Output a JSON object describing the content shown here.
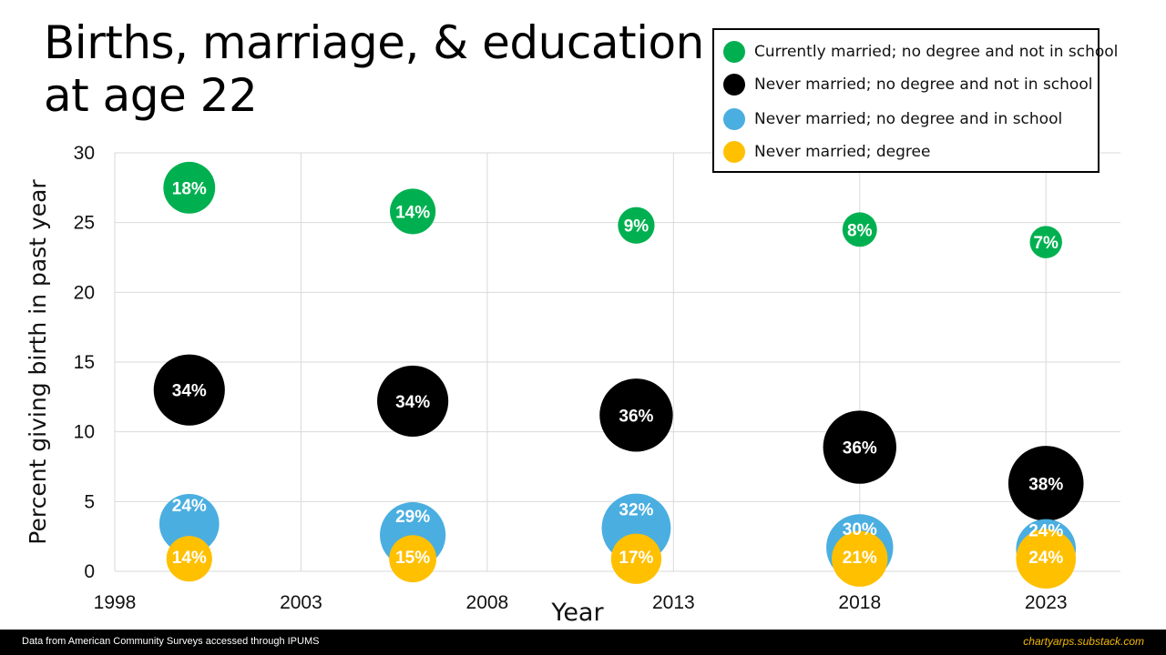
{
  "footer": {
    "source": "Data from American Community Surveys accessed through IPUMS",
    "site": "chartyarps.substack.com"
  },
  "chart_data": {
    "type": "bubble",
    "title_lines": [
      "Births, marriage, & education",
      "at age 22"
    ],
    "xlabel": "Year",
    "ylabel": "Percent giving birth in past year",
    "xlim": [
      1998,
      2025
    ],
    "ylim": [
      0,
      30
    ],
    "xticks": [
      "1998",
      "2003",
      "2008",
      "2013",
      "2018",
      "2023"
    ],
    "yticks": [
      "0",
      "5",
      "10",
      "15",
      "20",
      "25",
      "30"
    ],
    "grid": true,
    "legend_position": "top-right",
    "series": [
      {
        "name": "Currently married; no degree and not in school",
        "color": "#00b050",
        "label_color": "#ffffff",
        "x": [
          2000,
          2006,
          2012,
          2018,
          2023
        ],
        "y": [
          27.5,
          25.8,
          24.8,
          24.5,
          23.6
        ],
        "labels": [
          "18%",
          "14%",
          "9%",
          "8%",
          "7%"
        ],
        "size": [
          18,
          14,
          9,
          8,
          7
        ]
      },
      {
        "name": "Never married; no degree and not in school",
        "color": "#000000",
        "label_color": "#ffffff",
        "x": [
          2000,
          2006,
          2012,
          2018,
          2023
        ],
        "y": [
          13.0,
          12.2,
          11.2,
          8.9,
          6.3
        ],
        "labels": [
          "34%",
          "34%",
          "36%",
          "36%",
          "38%"
        ],
        "size": [
          34,
          34,
          36,
          36,
          38
        ]
      },
      {
        "name": "Never married; no degree and in school",
        "color": "#4aaee0",
        "label_color": "#ffffff",
        "x": [
          2000,
          2006,
          2012,
          2018,
          2023
        ],
        "y": [
          3.4,
          2.6,
          3.1,
          1.7,
          1.6
        ],
        "labels": [
          "24%",
          "29%",
          "32%",
          "30%",
          "24%"
        ],
        "size": [
          24,
          29,
          32,
          30,
          24
        ]
      },
      {
        "name": "Never married; degree",
        "color": "#ffc000",
        "label_color": "#ffffff",
        "x": [
          2000,
          2006,
          2012,
          2018,
          2023
        ],
        "y": [
          0.9,
          0.9,
          0.9,
          0.9,
          0.9
        ],
        "labels": [
          "14%",
          "15%",
          "17%",
          "21%",
          "24%"
        ],
        "size": [
          14,
          15,
          17,
          21,
          24
        ]
      }
    ]
  }
}
